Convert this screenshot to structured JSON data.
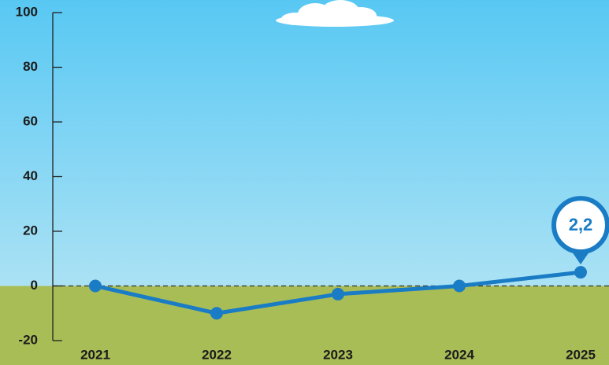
{
  "chart_data": {
    "type": "line",
    "categories": [
      "2021",
      "2022",
      "2023",
      "2024",
      "2025"
    ],
    "values": [
      0,
      -10,
      -3,
      0,
      5
    ],
    "color": "#1a7cc4",
    "annotation": "2,2",
    "ylim": [
      -20,
      100
    ],
    "yticks": [
      -20,
      0,
      20,
      40,
      60,
      80,
      100
    ],
    "zero_line": true
  }
}
